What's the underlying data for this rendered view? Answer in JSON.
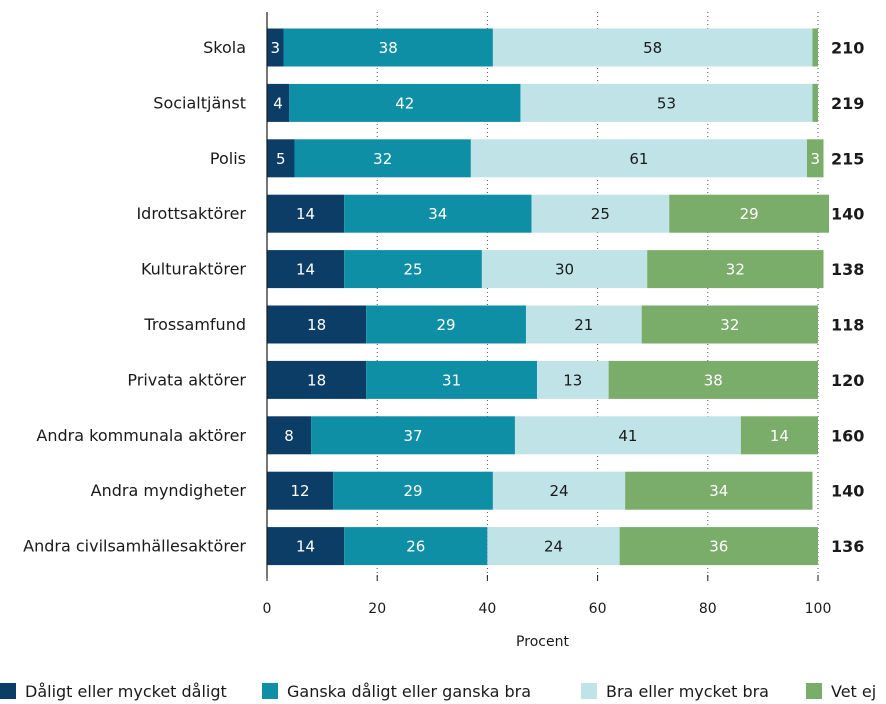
{
  "chart_data": {
    "type": "bar",
    "orientation": "horizontal",
    "stacked": true,
    "xlabel": "Procent",
    "xlim": [
      0,
      100
    ],
    "xticks": [
      "0",
      "20",
      "40",
      "60",
      "80",
      "100"
    ],
    "grid": "vertical dotted",
    "legend_position": "bottom",
    "categories": [
      "Skola",
      "Socialtjänst",
      "Polis",
      "Idrottsaktörer",
      "Kulturaktörer",
      "Trossamfund",
      "Privata aktörer",
      "Andra kommunala aktörer",
      "Andra myndigheter",
      "Andra civilsamhällesaktörer"
    ],
    "n_values": [
      "210",
      "219",
      "215",
      "140",
      "138",
      "118",
      "120",
      "160",
      "140",
      "136"
    ],
    "series": [
      {
        "name": "Dåligt eller mycket dåligt",
        "color": "#0b3d66",
        "label_color": "#ffffff",
        "values": [
          3,
          4,
          5,
          14,
          14,
          18,
          18,
          8,
          12,
          14
        ]
      },
      {
        "name": "Ganska dåligt eller ganska bra",
        "color": "#0e8fa6",
        "label_color": "#ffffff",
        "values": [
          38,
          42,
          32,
          34,
          25,
          29,
          31,
          37,
          29,
          26
        ]
      },
      {
        "name": "Bra eller mycket bra",
        "color": "#bfe3e6",
        "label_color": "#1a1a1a",
        "values": [
          58,
          53,
          61,
          25,
          30,
          21,
          13,
          41,
          24,
          24
        ]
      },
      {
        "name": "Vet ej",
        "color": "#7aac6a",
        "label_color": "#ffffff",
        "values": [
          1,
          1,
          3,
          29,
          32,
          32,
          38,
          14,
          34,
          36
        ]
      }
    ],
    "value_labels_shown": [
      [
        true,
        true,
        true,
        false
      ],
      [
        true,
        true,
        true,
        false
      ],
      [
        true,
        true,
        true,
        true
      ],
      [
        true,
        true,
        true,
        true
      ],
      [
        true,
        true,
        true,
        true
      ],
      [
        true,
        true,
        true,
        true
      ],
      [
        true,
        true,
        true,
        true
      ],
      [
        true,
        true,
        true,
        true
      ],
      [
        true,
        true,
        true,
        true
      ],
      [
        true,
        true,
        true,
        true
      ]
    ]
  }
}
